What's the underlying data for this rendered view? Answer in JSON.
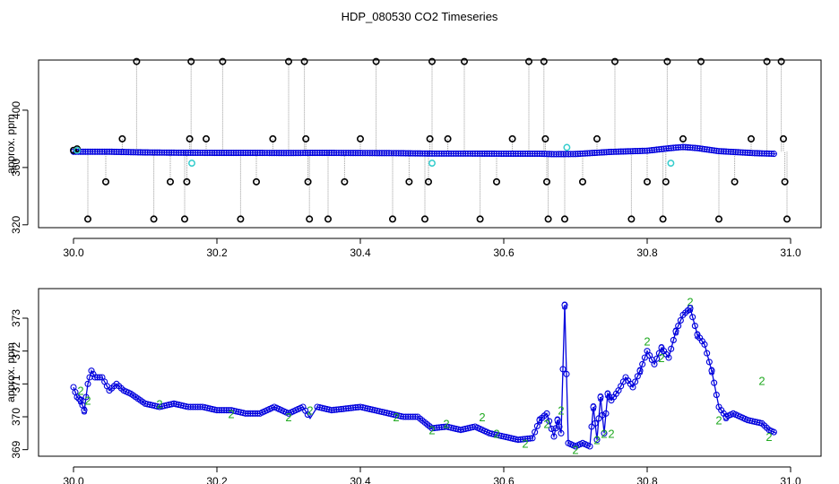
{
  "figure": {
    "title": "HDP_080530  CO2 Timeseries"
  },
  "colors": {
    "points_black": "#000000",
    "points_cyan": "#33cccc",
    "points_blue": "#0000dd",
    "line_blue": "#0000dd",
    "series2_green": "#22aa22",
    "drop_lines": "#9a9a9a"
  },
  "chart_data": [
    {
      "type": "scatter",
      "title": "",
      "xlabel": "",
      "ylabel": "approx. ppm",
      "xlim": [
        0,
        1
      ],
      "ylim": [
        318,
        435
      ],
      "x_ticks": [
        30.0,
        30.2,
        30.4,
        30.6,
        30.8,
        31.0
      ],
      "x_tick_labels": [
        "30.0",
        "30.2",
        "30.4",
        "30.6",
        "30.8",
        "31.0"
      ],
      "y_ticks": [
        320,
        360,
        400
      ],
      "y_tick_labels": [
        "320",
        "360",
        "400"
      ],
      "series": [
        {
          "marker": "o",
          "color": "#000000",
          "x": [
            30.0,
            30.005,
            30.02,
            30.045,
            30.068,
            30.088,
            30.112,
            30.135,
            30.155,
            30.158,
            30.162,
            30.164,
            30.185,
            30.208,
            30.233,
            30.255,
            30.278,
            30.3,
            30.322,
            30.324,
            30.327,
            30.329,
            30.355,
            30.378,
            30.4,
            30.422,
            30.445,
            30.468,
            30.49,
            30.495,
            30.497,
            30.5,
            30.522,
            30.545,
            30.567,
            30.59,
            30.612,
            30.635,
            30.656,
            30.658,
            30.66,
            30.662,
            30.685,
            30.71,
            30.73,
            30.755,
            30.778,
            30.8,
            30.822,
            30.826,
            30.828,
            30.85,
            30.875,
            30.9,
            30.922,
            30.945,
            30.967,
            30.987,
            30.99,
            30.992,
            30.995
          ],
          "y": [
            372,
            373,
            324,
            350,
            380,
            434,
            324,
            350,
            324,
            350,
            380,
            434,
            380,
            434,
            324,
            350,
            380,
            434,
            434,
            380,
            350,
            324,
            324,
            350,
            380,
            434,
            324,
            350,
            324,
            350,
            380,
            434,
            380,
            434,
            324,
            350,
            380,
            434,
            434,
            380,
            350,
            324,
            324,
            350,
            380,
            434,
            324,
            350,
            324,
            350,
            434,
            380,
            434,
            324,
            350,
            380,
            434,
            434,
            380,
            350,
            324
          ]
        },
        {
          "marker": "o",
          "color": "#33cccc",
          "x": [
            30.005,
            30.165,
            30.5,
            30.688,
            30.833
          ],
          "y": [
            372,
            363,
            363,
            374,
            363
          ]
        },
        {
          "name": "",
          "marker": "o",
          "color": "#0000dd",
          "x": [
            30.0,
            30.05,
            30.1,
            30.15,
            30.2,
            30.25,
            30.3,
            30.33,
            30.35,
            30.4,
            30.45,
            30.5,
            30.55,
            30.6,
            30.65,
            30.67,
            30.7,
            30.75,
            30.8,
            30.83,
            30.85,
            30.87,
            30.9,
            30.95,
            30.98
          ],
          "y": [
            371,
            371,
            370.5,
            370.3,
            370.2,
            370.2,
            370.1,
            370.2,
            370.2,
            370.1,
            370,
            369.7,
            369.7,
            369.6,
            369.6,
            369.3,
            369.4,
            370.9,
            371.7,
            373.4,
            374.3,
            373.5,
            371.4,
            370,
            369.5
          ]
        }
      ]
    },
    {
      "type": "line",
      "title": "",
      "xlabel": "",
      "ylabel": "approx. ppm",
      "xlim": [
        0,
        1
      ],
      "ylim": [
        368.8,
        373.9
      ],
      "x_ticks": [
        30.0,
        30.2,
        30.4,
        30.6,
        30.8,
        31.0
      ],
      "x_tick_labels": [
        "30.0",
        "30.2",
        "30.4",
        "30.6",
        "30.8",
        "31.0"
      ],
      "y_ticks": [
        369,
        370,
        371,
        372,
        373
      ],
      "y_tick_labels": [
        "369",
        "370",
        "371",
        "372",
        "373"
      ],
      "series": [
        {
          "marker": "3",
          "color": "#0000dd",
          "x": [
            30.0,
            30.005,
            30.01,
            30.015,
            30.02,
            30.025,
            30.03,
            30.04,
            30.05,
            30.06,
            30.07,
            30.08,
            30.1,
            30.12,
            30.14,
            30.16,
            30.18,
            30.2,
            30.22,
            30.24,
            30.26,
            30.28,
            30.3,
            30.32,
            30.33,
            30.34,
            30.36,
            30.38,
            30.4,
            30.42,
            30.44,
            30.46,
            30.48,
            30.5,
            30.52,
            30.54,
            30.56,
            30.58,
            30.6,
            30.62,
            30.64,
            30.65,
            30.66,
            30.67,
            30.675,
            30.68,
            30.685,
            30.69,
            30.7,
            30.71,
            30.72,
            30.725,
            30.73,
            30.735,
            30.74,
            30.745,
            30.75,
            30.76,
            30.77,
            30.78,
            30.79,
            30.8,
            30.81,
            30.82,
            30.83,
            30.84,
            30.85,
            30.86,
            30.87,
            30.88,
            30.89,
            30.9,
            30.91,
            30.92,
            30.94,
            30.96,
            30.97,
            30.98
          ],
          "y": [
            370.9,
            370.6,
            370.5,
            370.2,
            371,
            371.4,
            371.2,
            371.2,
            370.8,
            371,
            370.8,
            370.7,
            370.4,
            370.3,
            370.4,
            370.3,
            370.3,
            370.2,
            370.2,
            370.1,
            370.1,
            370.3,
            370.1,
            370.3,
            369.95,
            370.3,
            370.2,
            370.25,
            370.3,
            370.2,
            370.1,
            370,
            370,
            369.65,
            369.7,
            369.6,
            369.7,
            369.5,
            369.4,
            369.3,
            369.35,
            369.9,
            370.1,
            369.4,
            369.9,
            369.5,
            373.4,
            369.2,
            369.1,
            369.2,
            369.1,
            370.3,
            369.3,
            370.6,
            369.5,
            370.7,
            370.5,
            370.8,
            371.2,
            370.9,
            371.4,
            372,
            371.6,
            372.1,
            371.8,
            372.6,
            373.1,
            373.3,
            372.5,
            372.2,
            371.4,
            370.3,
            370,
            370.1,
            369.9,
            369.8,
            369.6,
            369.5
          ]
        },
        {
          "marker": "2",
          "color": "#22aa22",
          "x": [
            30.01,
            30.02,
            30.12,
            30.22,
            30.3,
            30.33,
            30.45,
            30.5,
            30.52,
            30.57,
            30.59,
            30.63,
            30.66,
            30.68,
            30.7,
            30.73,
            30.74,
            30.75,
            30.8,
            30.82,
            30.86,
            30.9,
            30.96,
            30.97
          ],
          "y": [
            370.8,
            370.5,
            370.4,
            370.1,
            370,
            370.2,
            370,
            369.6,
            369.8,
            370,
            369.5,
            369.2,
            369.8,
            370.2,
            369,
            369.3,
            369.5,
            369.5,
            372.3,
            371.8,
            373.5,
            369.9,
            371.1,
            369.4
          ]
        }
      ]
    }
  ]
}
